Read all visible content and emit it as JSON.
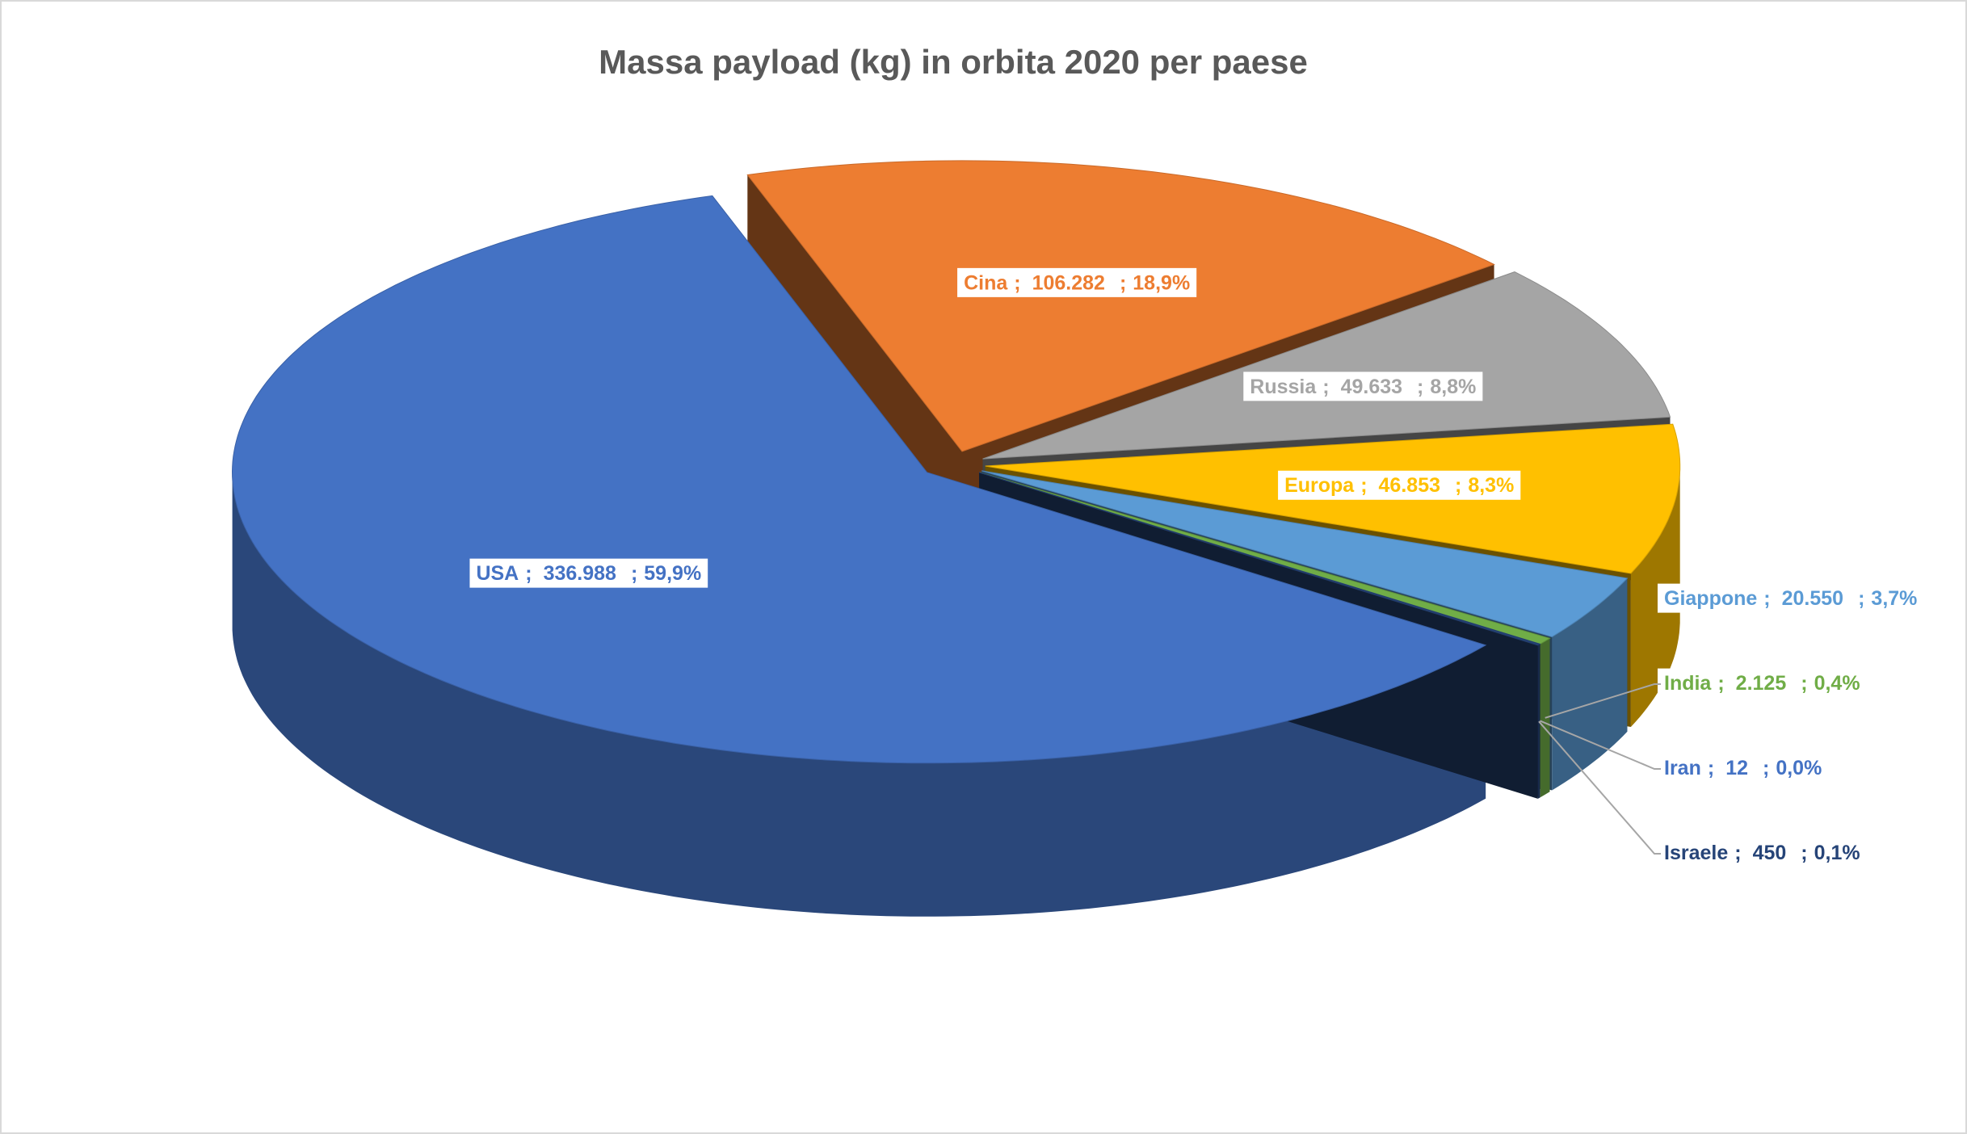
{
  "chart_data": {
    "type": "pie3d",
    "title": "Massa payload (kg) in orbita 2020 per paese",
    "categories": [
      "Cina",
      "Russia",
      "Europa",
      "Giappone",
      "India",
      "Iran",
      "Israele",
      "USA"
    ],
    "values": [
      106282,
      49633,
      46853,
      20550,
      2125,
      12,
      450,
      336988
    ],
    "value_labels": [
      "106.282",
      "49.633",
      "46.853",
      "20.550",
      "2.125",
      "12",
      "450",
      "336.988"
    ],
    "percent_labels": [
      "18,9%",
      "8,8%",
      "8,3%",
      "3,7%",
      "0,4%",
      "0,0%",
      "0,1%",
      "59,9%"
    ],
    "separator": ";",
    "colors": [
      "#ed7d31",
      "#a5a5a5",
      "#ffc000",
      "#5b9bd5",
      "#70ad47",
      "#4472c4",
      "#264478",
      "#4472c4"
    ]
  }
}
